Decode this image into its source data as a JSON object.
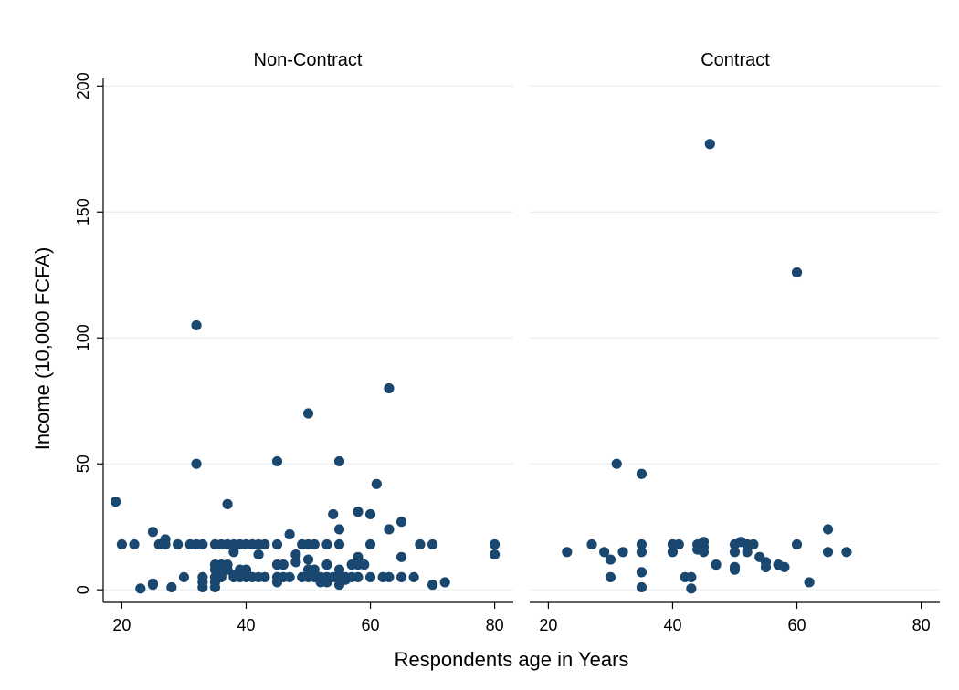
{
  "chart_data": {
    "type": "scatter",
    "xlabel": "Respondents age in Years",
    "ylabel": "Income (10,000 FCFA)",
    "xlim": [
      17,
      83
    ],
    "ylim": [
      -5,
      203
    ],
    "xticks": [
      "20",
      "40",
      "60",
      "80"
    ],
    "yticks": [
      "0",
      "50",
      "100",
      "150",
      "200"
    ],
    "grid": true,
    "colors": {
      "marker": "#1a476f",
      "grid": "#e8edf2",
      "axis": "#000000"
    },
    "panels": [
      {
        "title": "Non-Contract",
        "points": [
          [
            19,
            35
          ],
          [
            20,
            18
          ],
          [
            22,
            18
          ],
          [
            23,
            0.5
          ],
          [
            25,
            23
          ],
          [
            25,
            2
          ],
          [
            25,
            2.5
          ],
          [
            26,
            18
          ],
          [
            27,
            20
          ],
          [
            27,
            18
          ],
          [
            28,
            1
          ],
          [
            29,
            18
          ],
          [
            30,
            5
          ],
          [
            31,
            18
          ],
          [
            32,
            18
          ],
          [
            32,
            105
          ],
          [
            32,
            50
          ],
          [
            33,
            18
          ],
          [
            33,
            5
          ],
          [
            33,
            3
          ],
          [
            33,
            1
          ],
          [
            35,
            18
          ],
          [
            35,
            10
          ],
          [
            35,
            8
          ],
          [
            35,
            5
          ],
          [
            35,
            3
          ],
          [
            35,
            1
          ],
          [
            36,
            18
          ],
          [
            36,
            10
          ],
          [
            36,
            6
          ],
          [
            36,
            5
          ],
          [
            37,
            34
          ],
          [
            37,
            18
          ],
          [
            37,
            8
          ],
          [
            37,
            10
          ],
          [
            38,
            18
          ],
          [
            38,
            15
          ],
          [
            38,
            6
          ],
          [
            38,
            5
          ],
          [
            39,
            18
          ],
          [
            39,
            8
          ],
          [
            39,
            5
          ],
          [
            39,
            6
          ],
          [
            40,
            18
          ],
          [
            40,
            8
          ],
          [
            40,
            5
          ],
          [
            40,
            7
          ],
          [
            41,
            18
          ],
          [
            41,
            5
          ],
          [
            42,
            18
          ],
          [
            42,
            14
          ],
          [
            42,
            5
          ],
          [
            43,
            18
          ],
          [
            43,
            5
          ],
          [
            45,
            51
          ],
          [
            45,
            18
          ],
          [
            45,
            10
          ],
          [
            45,
            5
          ],
          [
            45,
            3
          ],
          [
            46,
            10
          ],
          [
            46,
            5
          ],
          [
            47,
            22
          ],
          [
            47,
            5
          ],
          [
            48,
            14
          ],
          [
            48,
            11
          ],
          [
            49,
            18
          ],
          [
            49,
            5
          ],
          [
            50,
            70
          ],
          [
            50,
            18
          ],
          [
            50,
            12
          ],
          [
            50,
            8
          ],
          [
            50,
            5
          ],
          [
            51,
            18
          ],
          [
            51,
            8
          ],
          [
            51,
            5
          ],
          [
            52,
            5
          ],
          [
            52,
            3
          ],
          [
            53,
            18
          ],
          [
            53,
            10
          ],
          [
            53,
            5
          ],
          [
            53,
            3
          ],
          [
            54,
            30
          ],
          [
            54,
            5
          ],
          [
            55,
            51
          ],
          [
            55,
            24
          ],
          [
            55,
            18
          ],
          [
            55,
            8
          ],
          [
            55,
            5
          ],
          [
            55,
            2
          ],
          [
            56,
            5
          ],
          [
            56,
            4
          ],
          [
            57,
            10
          ],
          [
            57,
            5
          ],
          [
            58,
            31
          ],
          [
            58,
            13
          ],
          [
            58,
            10
          ],
          [
            58,
            5
          ],
          [
            59,
            10
          ],
          [
            60,
            30
          ],
          [
            60,
            18
          ],
          [
            60,
            5
          ],
          [
            61,
            42
          ],
          [
            62,
            5
          ],
          [
            63,
            80
          ],
          [
            63,
            24
          ],
          [
            63,
            5
          ],
          [
            65,
            27
          ],
          [
            65,
            13
          ],
          [
            65,
            5
          ],
          [
            67,
            5
          ],
          [
            68,
            18
          ],
          [
            70,
            18
          ],
          [
            70,
            2
          ],
          [
            72,
            3
          ],
          [
            80,
            18
          ],
          [
            80,
            14
          ]
        ]
      },
      {
        "title": "Contract",
        "points": [
          [
            23,
            15
          ],
          [
            27,
            18
          ],
          [
            29,
            15
          ],
          [
            30,
            12
          ],
          [
            30,
            5
          ],
          [
            31,
            50
          ],
          [
            32,
            15
          ],
          [
            35,
            46
          ],
          [
            35,
            18
          ],
          [
            35,
            15
          ],
          [
            35,
            7
          ],
          [
            35,
            1
          ],
          [
            40,
            18
          ],
          [
            40,
            15
          ],
          [
            41,
            18
          ],
          [
            42,
            5
          ],
          [
            43,
            5
          ],
          [
            43,
            0.5
          ],
          [
            44,
            18
          ],
          [
            44,
            16
          ],
          [
            45,
            19
          ],
          [
            45,
            17
          ],
          [
            45,
            15
          ],
          [
            46,
            177
          ],
          [
            47,
            10
          ],
          [
            50,
            18
          ],
          [
            50,
            15
          ],
          [
            50,
            9
          ],
          [
            50,
            8
          ],
          [
            51,
            19
          ],
          [
            52,
            18
          ],
          [
            52,
            15
          ],
          [
            53,
            18
          ],
          [
            54,
            13
          ],
          [
            55,
            11
          ],
          [
            55,
            9
          ],
          [
            57,
            10
          ],
          [
            58,
            9
          ],
          [
            60,
            126
          ],
          [
            60,
            18
          ],
          [
            62,
            3
          ],
          [
            65,
            24
          ],
          [
            65,
            15
          ],
          [
            68,
            15
          ]
        ]
      }
    ]
  }
}
